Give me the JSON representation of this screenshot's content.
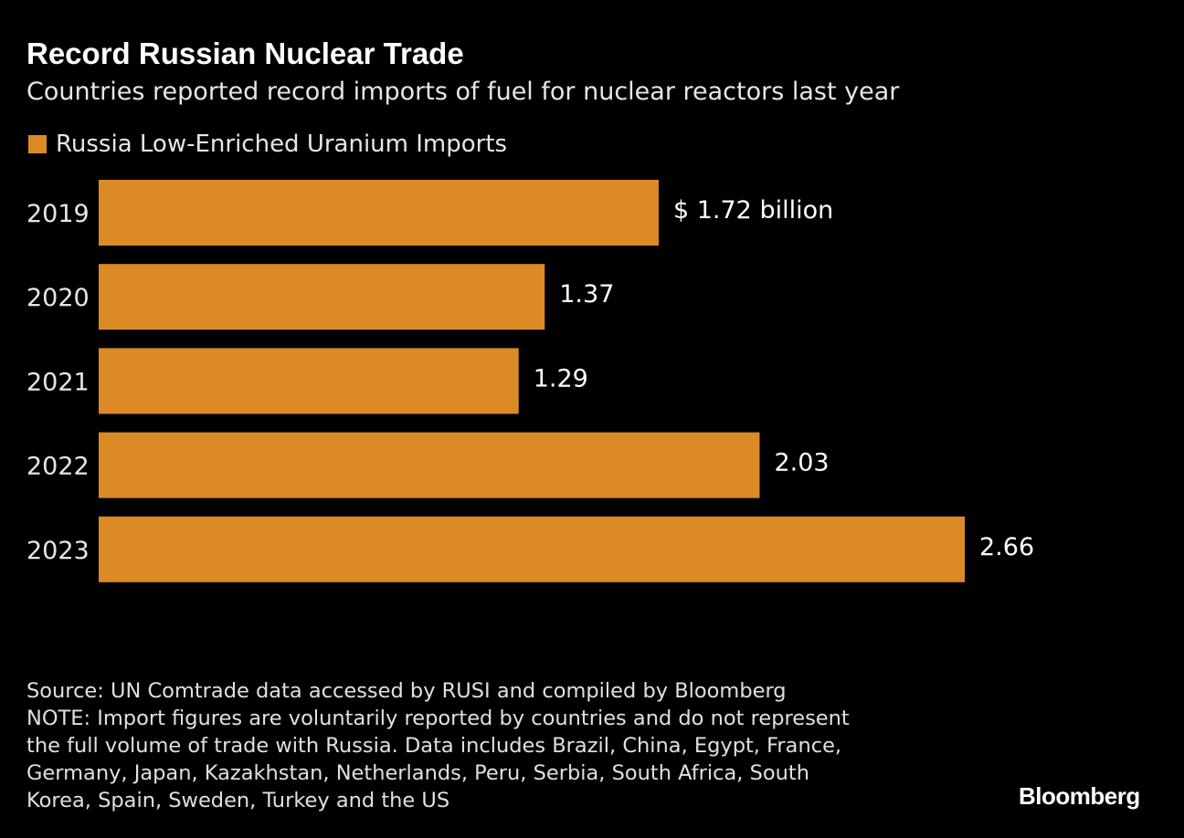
{
  "chart_data": {
    "type": "bar",
    "orientation": "horizontal",
    "title": "Record Russian Nuclear Trade",
    "subtitle": "Countries reported record imports of fuel for nuclear reactors last year",
    "legend": [
      "Russia Low-Enriched Uranium Imports"
    ],
    "legend_position": "top-left",
    "categories": [
      "2019",
      "2020",
      "2021",
      "2022",
      "2023"
    ],
    "values": [
      1.72,
      1.37,
      1.29,
      2.03,
      2.66
    ],
    "data_labels": [
      "$ 1.72 billion",
      "1.37",
      "1.29",
      "2.03",
      "2.66"
    ],
    "xlabel": "",
    "ylabel": "",
    "xlim": [
      0,
      2.66
    ],
    "grid": false,
    "unit": "billion USD"
  },
  "colors": {
    "bar": "#dc8a26",
    "background": "#000000"
  },
  "footer": {
    "source": "Source: UN Comtrade data accessed by RUSI and compiled by Bloomberg",
    "note_lines": [
      "NOTE: Import figures are voluntarily reported by countries and do not represent",
      "the full volume of trade with Russia. Data includes Brazil, China, Egypt, France,",
      "Germany, Japan, Kazakhstan, Netherlands, Peru, Serbia, South Africa, South",
      "Korea, Spain, Sweden, Turkey and the US"
    ]
  },
  "logo": "Bloomberg"
}
